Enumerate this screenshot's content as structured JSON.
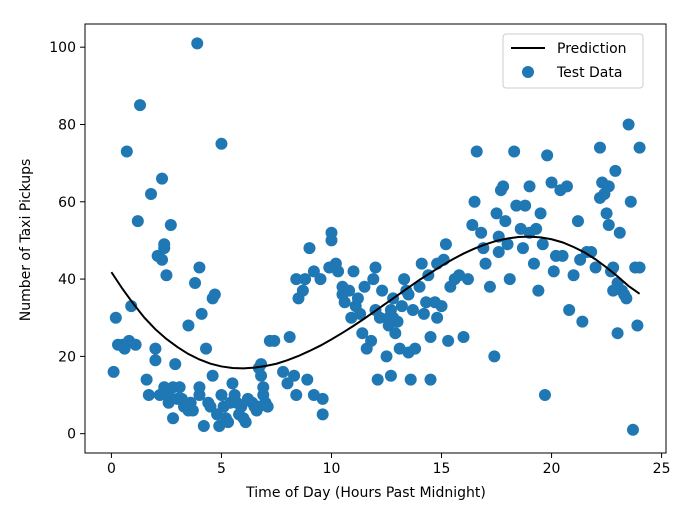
{
  "chart_data": {
    "type": "scatter",
    "xlabel": "Time of Day (Hours Past Midnight)",
    "ylabel": "Number of Taxi Pickups",
    "xlim": [
      -1.2,
      25.2
    ],
    "ylim": [
      -5,
      106
    ],
    "xticks": [
      0,
      5,
      10,
      15,
      20,
      25
    ],
    "yticks": [
      0,
      20,
      40,
      60,
      80,
      100
    ],
    "grid": false,
    "legend_position": "top-right",
    "series": [
      {
        "name": "Prediction",
        "kind": "line",
        "color": "#000000",
        "x": [
          0,
          0.5,
          1,
          1.5,
          2,
          2.5,
          3,
          3.5,
          4,
          4.5,
          5,
          5.5,
          6,
          6.5,
          7,
          7.5,
          8,
          8.5,
          9,
          9.5,
          10,
          10.5,
          11,
          11.5,
          12,
          12.5,
          13,
          13.5,
          14,
          14.5,
          15,
          15.5,
          16,
          16.5,
          17,
          17.5,
          18,
          18.5,
          19,
          19.5,
          20,
          20.5,
          21,
          21.5,
          22,
          22.5,
          23,
          23.5,
          24
        ],
        "y": [
          41.8,
          37.5,
          33.6,
          30.0,
          27.0,
          24.5,
          22.4,
          20.6,
          19.2,
          18.1,
          17.4,
          17.0,
          16.9,
          17.1,
          17.5,
          18.1,
          19.0,
          20.1,
          21.4,
          22.8,
          24.4,
          26.1,
          27.9,
          29.8,
          31.8,
          33.8,
          35.8,
          37.8,
          39.8,
          41.6,
          43.4,
          45.1,
          46.6,
          47.9,
          49.0,
          49.9,
          50.5,
          50.9,
          51.0,
          50.8,
          50.3,
          49.5,
          48.3,
          46.9,
          45.1,
          43.0,
          40.7,
          38.2,
          36.2
        ]
      },
      {
        "name": "Test Data",
        "kind": "scatter",
        "color": "#1f77b4",
        "points": [
          [
            0.1,
            16
          ],
          [
            0.2,
            30
          ],
          [
            0.3,
            23
          ],
          [
            0.5,
            23
          ],
          [
            0.6,
            22
          ],
          [
            0.7,
            73
          ],
          [
            0.8,
            24
          ],
          [
            0.9,
            33
          ],
          [
            1.1,
            23
          ],
          [
            1.2,
            55
          ],
          [
            1.3,
            85
          ],
          [
            1.6,
            14
          ],
          [
            1.7,
            10
          ],
          [
            1.8,
            62
          ],
          [
            2.0,
            19
          ],
          [
            2.0,
            22
          ],
          [
            2.1,
            46
          ],
          [
            2.2,
            10
          ],
          [
            2.3,
            66
          ],
          [
            2.3,
            45
          ],
          [
            2.4,
            12
          ],
          [
            2.4,
            48
          ],
          [
            2.4,
            49
          ],
          [
            2.5,
            41
          ],
          [
            2.6,
            8
          ],
          [
            2.6,
            10
          ],
          [
            2.7,
            54
          ],
          [
            2.8,
            12
          ],
          [
            2.8,
            4
          ],
          [
            2.9,
            18
          ],
          [
            3.0,
            9
          ],
          [
            3.1,
            12
          ],
          [
            3.2,
            9
          ],
          [
            3.3,
            7
          ],
          [
            3.5,
            6
          ],
          [
            3.5,
            28
          ],
          [
            3.6,
            8
          ],
          [
            3.7,
            6
          ],
          [
            3.8,
            39
          ],
          [
            3.9,
            101
          ],
          [
            4.0,
            10
          ],
          [
            4.0,
            12
          ],
          [
            4.0,
            43
          ],
          [
            4.1,
            31
          ],
          [
            4.2,
            2
          ],
          [
            4.3,
            22
          ],
          [
            4.4,
            8
          ],
          [
            4.5,
            7
          ],
          [
            4.6,
            15
          ],
          [
            4.6,
            35
          ],
          [
            4.7,
            36
          ],
          [
            4.8,
            5
          ],
          [
            4.9,
            2
          ],
          [
            5.0,
            75
          ],
          [
            5.0,
            10
          ],
          [
            5.1,
            7
          ],
          [
            5.2,
            4
          ],
          [
            5.3,
            3
          ],
          [
            5.4,
            8
          ],
          [
            5.5,
            13
          ],
          [
            5.6,
            10
          ],
          [
            5.7,
            8
          ],
          [
            5.8,
            5
          ],
          [
            5.9,
            7
          ],
          [
            6.0,
            4
          ],
          [
            6.1,
            3
          ],
          [
            6.2,
            9
          ],
          [
            6.4,
            8
          ],
          [
            6.5,
            7
          ],
          [
            6.6,
            6
          ],
          [
            6.7,
            7
          ],
          [
            6.7,
            17
          ],
          [
            6.8,
            18
          ],
          [
            6.8,
            15
          ],
          [
            6.9,
            10
          ],
          [
            6.9,
            12
          ],
          [
            7.0,
            8
          ],
          [
            7.1,
            7
          ],
          [
            7.2,
            24
          ],
          [
            7.4,
            24
          ],
          [
            7.8,
            16
          ],
          [
            8.0,
            13
          ],
          [
            8.1,
            25
          ],
          [
            8.3,
            15
          ],
          [
            8.4,
            40
          ],
          [
            8.4,
            10
          ],
          [
            8.5,
            35
          ],
          [
            8.7,
            37
          ],
          [
            8.8,
            40
          ],
          [
            8.9,
            14
          ],
          [
            9.0,
            48
          ],
          [
            9.2,
            42
          ],
          [
            9.2,
            10
          ],
          [
            9.5,
            40
          ],
          [
            9.6,
            5
          ],
          [
            9.6,
            9
          ],
          [
            9.9,
            43
          ],
          [
            10.0,
            50
          ],
          [
            10.0,
            52
          ],
          [
            10.2,
            44
          ],
          [
            10.3,
            42
          ],
          [
            10.5,
            38
          ],
          [
            10.5,
            36
          ],
          [
            10.6,
            34
          ],
          [
            10.8,
            37
          ],
          [
            10.9,
            30
          ],
          [
            11.0,
            42
          ],
          [
            11.1,
            33
          ],
          [
            11.2,
            35
          ],
          [
            11.3,
            31
          ],
          [
            11.4,
            26
          ],
          [
            11.5,
            38
          ],
          [
            11.6,
            22
          ],
          [
            11.8,
            24
          ],
          [
            11.9,
            40
          ],
          [
            12.0,
            43
          ],
          [
            12.0,
            32
          ],
          [
            12.1,
            14
          ],
          [
            12.2,
            30
          ],
          [
            12.3,
            37
          ],
          [
            12.5,
            20
          ],
          [
            12.6,
            28
          ],
          [
            12.6,
            30
          ],
          [
            12.7,
            32
          ],
          [
            12.7,
            15
          ],
          [
            12.8,
            30
          ],
          [
            12.8,
            35
          ],
          [
            12.9,
            26
          ],
          [
            13.0,
            29
          ],
          [
            13.1,
            22
          ],
          [
            13.2,
            33
          ],
          [
            13.3,
            40
          ],
          [
            13.4,
            37
          ],
          [
            13.5,
            36
          ],
          [
            13.5,
            21
          ],
          [
            13.6,
            14
          ],
          [
            13.7,
            32
          ],
          [
            13.8,
            22
          ],
          [
            14.0,
            38
          ],
          [
            14.1,
            44
          ],
          [
            14.2,
            31
          ],
          [
            14.3,
            34
          ],
          [
            14.4,
            41
          ],
          [
            14.5,
            25
          ],
          [
            14.5,
            14
          ],
          [
            14.7,
            34
          ],
          [
            14.8,
            30
          ],
          [
            14.8,
            44
          ],
          [
            15.0,
            33
          ],
          [
            15.1,
            45
          ],
          [
            15.2,
            49
          ],
          [
            15.3,
            24
          ],
          [
            15.4,
            38
          ],
          [
            15.6,
            40
          ],
          [
            15.8,
            41
          ],
          [
            16.0,
            25
          ],
          [
            16.2,
            40
          ],
          [
            16.4,
            54
          ],
          [
            16.5,
            60
          ],
          [
            16.6,
            73
          ],
          [
            16.8,
            52
          ],
          [
            16.9,
            48
          ],
          [
            17.0,
            44
          ],
          [
            17.2,
            38
          ],
          [
            17.4,
            20
          ],
          [
            17.5,
            57
          ],
          [
            17.6,
            51
          ],
          [
            17.6,
            47
          ],
          [
            17.7,
            63
          ],
          [
            17.8,
            64
          ],
          [
            17.9,
            55
          ],
          [
            18.0,
            49
          ],
          [
            18.1,
            40
          ],
          [
            18.3,
            73
          ],
          [
            18.4,
            59
          ],
          [
            18.6,
            53
          ],
          [
            18.7,
            48
          ],
          [
            18.8,
            59
          ],
          [
            19.0,
            64
          ],
          [
            19.0,
            52
          ],
          [
            19.2,
            44
          ],
          [
            19.3,
            53
          ],
          [
            19.4,
            37
          ],
          [
            19.5,
            57
          ],
          [
            19.6,
            49
          ],
          [
            19.7,
            10
          ],
          [
            19.8,
            72
          ],
          [
            20.0,
            65
          ],
          [
            20.1,
            42
          ],
          [
            20.2,
            46
          ],
          [
            20.4,
            63
          ],
          [
            20.5,
            46
          ],
          [
            20.7,
            64
          ],
          [
            20.8,
            32
          ],
          [
            21.0,
            41
          ],
          [
            21.2,
            55
          ],
          [
            21.3,
            45
          ],
          [
            21.4,
            29
          ],
          [
            21.6,
            47
          ],
          [
            21.8,
            47
          ],
          [
            22.0,
            43
          ],
          [
            22.2,
            74
          ],
          [
            22.2,
            61
          ],
          [
            22.3,
            65
          ],
          [
            22.4,
            62
          ],
          [
            22.5,
            57
          ],
          [
            22.6,
            64
          ],
          [
            22.6,
            54
          ],
          [
            22.7,
            42
          ],
          [
            22.8,
            43
          ],
          [
            22.8,
            37
          ],
          [
            22.9,
            68
          ],
          [
            23.0,
            26
          ],
          [
            23.0,
            39
          ],
          [
            23.1,
            52
          ],
          [
            23.2,
            37
          ],
          [
            23.3,
            36
          ],
          [
            23.4,
            35
          ],
          [
            23.5,
            80
          ],
          [
            23.6,
            60
          ],
          [
            23.7,
            1
          ],
          [
            23.8,
            43
          ],
          [
            23.9,
            28
          ],
          [
            24.0,
            74
          ],
          [
            24.0,
            43
          ]
        ]
      }
    ]
  }
}
